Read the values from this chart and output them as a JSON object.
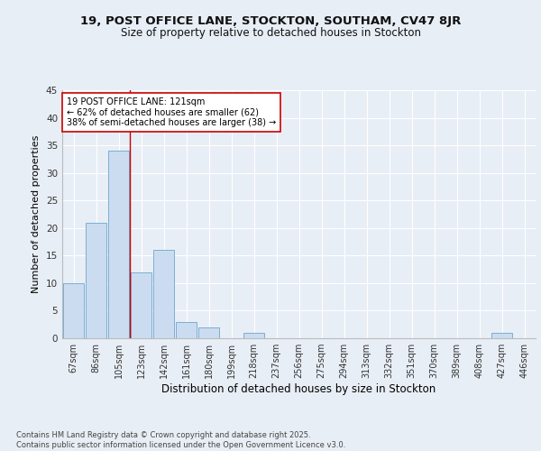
{
  "title1": "19, POST OFFICE LANE, STOCKTON, SOUTHAM, CV47 8JR",
  "title2": "Size of property relative to detached houses in Stockton",
  "xlabel": "Distribution of detached houses by size in Stockton",
  "ylabel": "Number of detached properties",
  "categories": [
    "67sqm",
    "86sqm",
    "105sqm",
    "123sqm",
    "142sqm",
    "161sqm",
    "180sqm",
    "199sqm",
    "218sqm",
    "237sqm",
    "256sqm",
    "275sqm",
    "294sqm",
    "313sqm",
    "332sqm",
    "351sqm",
    "370sqm",
    "389sqm",
    "408sqm",
    "427sqm",
    "446sqm"
  ],
  "values": [
    10,
    21,
    34,
    12,
    16,
    3,
    2,
    0,
    1,
    0,
    0,
    0,
    0,
    0,
    0,
    0,
    0,
    0,
    0,
    1,
    0
  ],
  "bar_color": "#ccdcf0",
  "bar_edge_color": "#7aafd4",
  "vline_x": 2.5,
  "vline_color": "#cc0000",
  "annotation_line1": "19 POST OFFICE LANE: 121sqm",
  "annotation_line2": "← 62% of detached houses are smaller (62)",
  "annotation_line3": "38% of semi-detached houses are larger (38) →",
  "annotation_box_color": "#ffffff",
  "annotation_box_edge": "#cc0000",
  "footer": "Contains HM Land Registry data © Crown copyright and database right 2025.\nContains public sector information licensed under the Open Government Licence v3.0.",
  "ylim": [
    0,
    45
  ],
  "yticks": [
    0,
    5,
    10,
    15,
    20,
    25,
    30,
    35,
    40,
    45
  ],
  "bg_color": "#e8eef5",
  "grid_color": "#ffffff",
  "title1_fontsize": 9.5,
  "title2_fontsize": 8.5,
  "bar_fontsize": 7,
  "ylabel_fontsize": 8,
  "xlabel_fontsize": 8.5,
  "annotation_fontsize": 7,
  "footer_fontsize": 6
}
